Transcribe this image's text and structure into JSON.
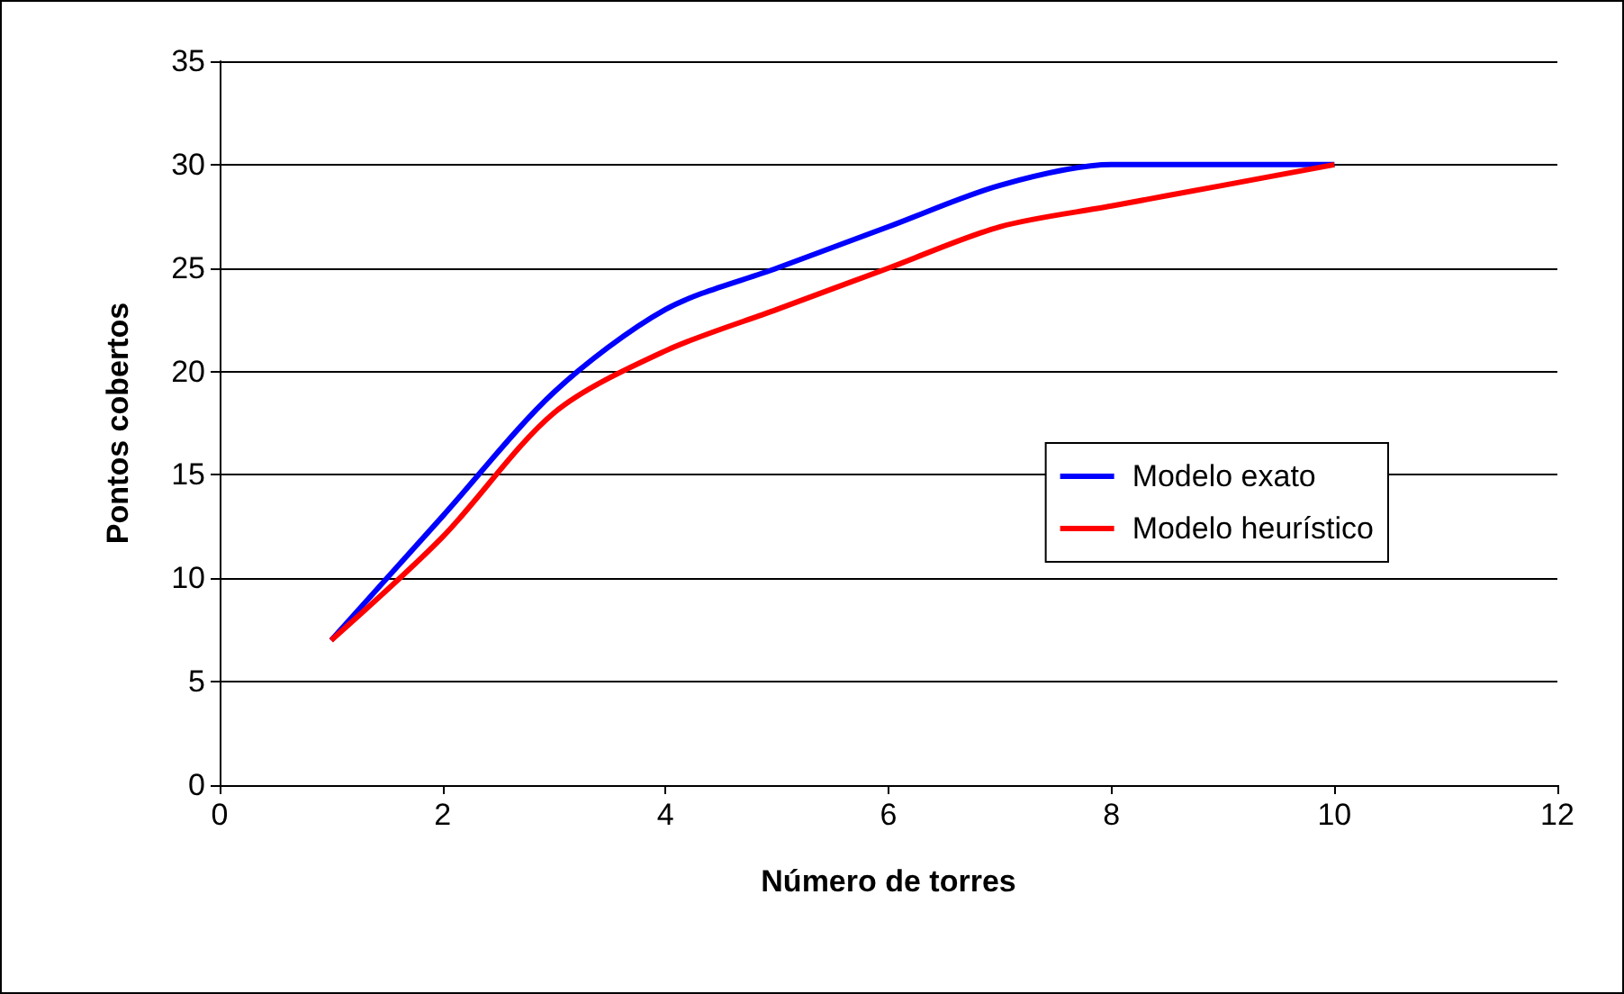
{
  "chart_data": {
    "type": "line",
    "xlabel": "Número de torres",
    "ylabel": "Pontos cobertos",
    "x": [
      1,
      2,
      3,
      4,
      5,
      6,
      7,
      8,
      9,
      10
    ],
    "series": [
      {
        "name": "Modelo exato",
        "color": "#0000ff",
        "values": [
          7,
          13,
          19,
          23,
          25,
          27,
          29,
          30,
          30,
          30
        ]
      },
      {
        "name": "Modelo heurístico",
        "color": "#ff0000",
        "values": [
          7,
          12,
          18,
          21,
          23,
          25,
          27,
          28,
          29,
          30
        ]
      }
    ],
    "xlim": [
      0,
      12
    ],
    "xticks": [
      0,
      2,
      4,
      6,
      8,
      10,
      12
    ],
    "ylim": [
      0,
      35
    ],
    "yticks": [
      0,
      5,
      10,
      15,
      20,
      25,
      30,
      35
    ],
    "grid": "y",
    "legend": "right",
    "marker": "none",
    "line_style": "solid"
  }
}
